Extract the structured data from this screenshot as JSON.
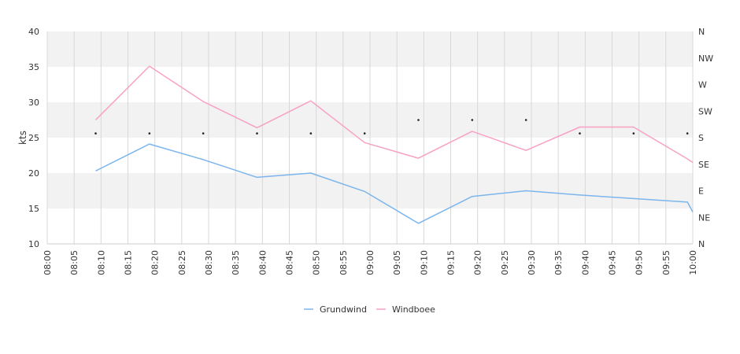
{
  "chart_data": {
    "type": "line",
    "ylabel": "kts",
    "ylim": [
      10,
      40
    ],
    "yticks": [
      "10",
      "15",
      "20",
      "25",
      "30",
      "35",
      "40"
    ],
    "y2ticks": [
      "N",
      "NE",
      "E",
      "SE",
      "S",
      "SW",
      "W",
      "NW",
      "N"
    ],
    "xlim": [
      "08:00",
      "10:00"
    ],
    "xticks": [
      "08:00",
      "08:05",
      "08:10",
      "08:15",
      "08:20",
      "08:25",
      "08:30",
      "08:35",
      "08:40",
      "08:45",
      "08:50",
      "08:55",
      "09:00",
      "09:05",
      "09:10",
      "09:15",
      "09:20",
      "09:25",
      "09:30",
      "09:35",
      "09:40",
      "09:45",
      "09:50",
      "09:55",
      "10:00"
    ],
    "series": [
      {
        "name": "Grundwind",
        "color": "#7cb5ec",
        "points": [
          [
            "08:09",
            20.3
          ],
          [
            "08:19",
            24.1
          ],
          [
            "08:29",
            21.9
          ],
          [
            "08:39",
            19.4
          ],
          [
            "08:49",
            20.0
          ],
          [
            "08:59",
            17.4
          ],
          [
            "09:09",
            12.9
          ],
          [
            "09:19",
            16.7
          ],
          [
            "09:29",
            17.5
          ],
          [
            "09:39",
            16.9
          ],
          [
            "09:49",
            16.4
          ],
          [
            "09:59",
            15.9
          ],
          [
            "10:00",
            14.5
          ]
        ]
      },
      {
        "name": "Windboee",
        "color": "#f7a1c4",
        "points": [
          [
            "08:09",
            27.5
          ],
          [
            "08:19",
            35.1
          ],
          [
            "08:29",
            30.1
          ],
          [
            "08:39",
            26.4
          ],
          [
            "08:49",
            30.2
          ],
          [
            "08:59",
            24.3
          ],
          [
            "09:09",
            22.1
          ],
          [
            "09:19",
            25.9
          ],
          [
            "09:29",
            23.2
          ],
          [
            "09:39",
            26.5
          ],
          [
            "09:49",
            26.5
          ],
          [
            "09:59",
            22.0
          ],
          [
            "10:00",
            21.5
          ]
        ]
      }
    ],
    "direction_points": [
      [
        "08:09",
        25.6
      ],
      [
        "08:19",
        25.6
      ],
      [
        "08:29",
        25.6
      ],
      [
        "08:39",
        25.6
      ],
      [
        "08:49",
        25.6
      ],
      [
        "08:59",
        25.6
      ],
      [
        "09:09",
        27.5
      ],
      [
        "09:19",
        27.5
      ],
      [
        "09:29",
        27.5
      ],
      [
        "09:39",
        25.6
      ],
      [
        "09:49",
        25.6
      ],
      [
        "09:59",
        25.6
      ]
    ],
    "legend_position": "bottom",
    "grid": true
  }
}
